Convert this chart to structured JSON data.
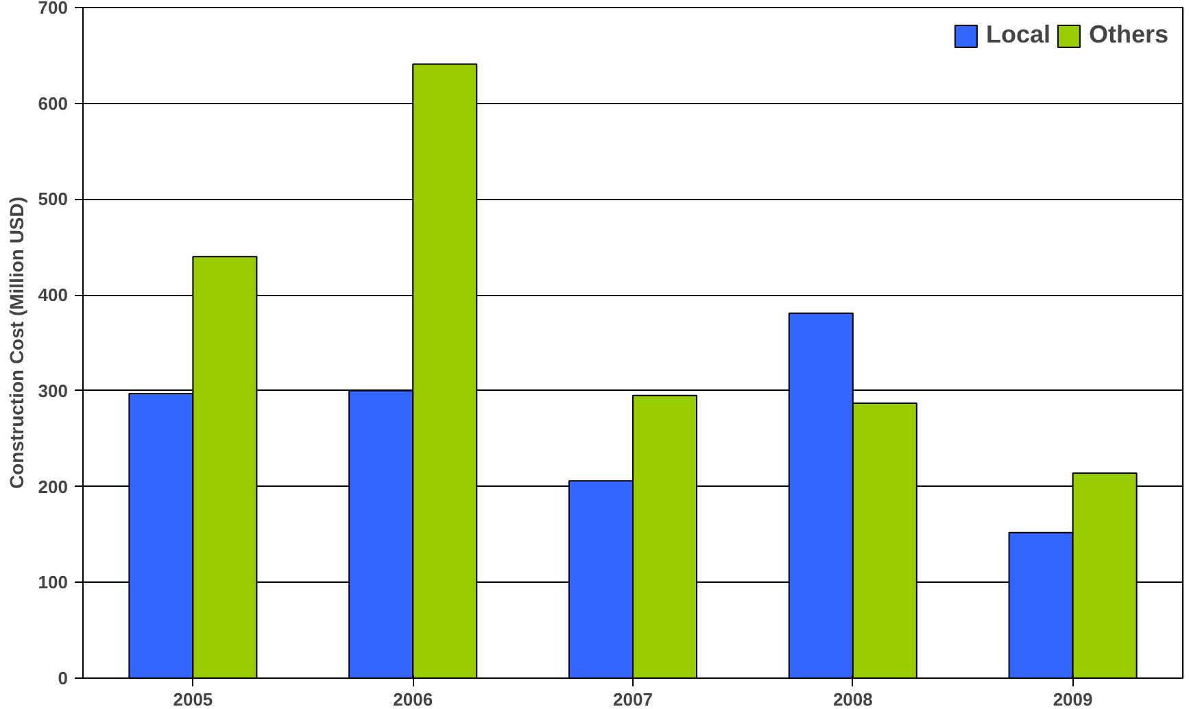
{
  "chart_data": {
    "type": "bar",
    "ylabel": "Construction Cost (Million USD)",
    "categories": [
      "2005",
      "2006",
      "2007",
      "2008",
      "2009"
    ],
    "series": [
      {
        "name": "Local",
        "color": "#3366ff",
        "values": [
          297,
          300,
          206,
          381,
          152
        ]
      },
      {
        "name": "Others",
        "color": "#99cc00",
        "values": [
          440,
          641,
          295,
          287,
          214
        ]
      }
    ],
    "ylim": [
      0,
      700
    ],
    "yticks": [
      0,
      100,
      200,
      300,
      400,
      500,
      600,
      700
    ],
    "grid": "y",
    "legend": "top right"
  }
}
